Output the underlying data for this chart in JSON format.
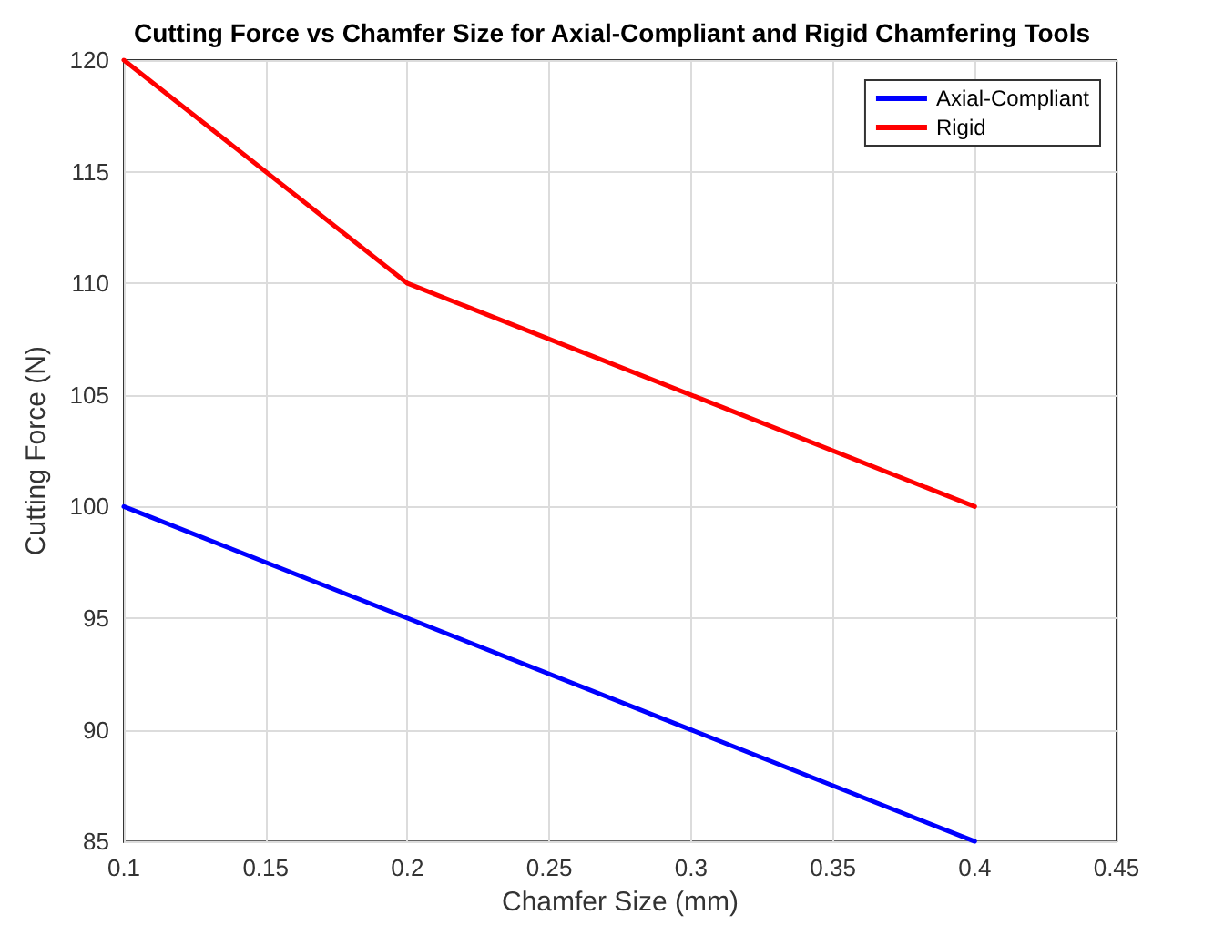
{
  "chart_data": {
    "type": "line",
    "title": "Cutting Force vs Chamfer Size for Axial-Compliant and Rigid Chamfering Tools",
    "xlabel": "Chamfer Size (mm)",
    "ylabel": "Cutting Force (N)",
    "x": [
      0.1,
      0.2,
      0.3,
      0.4
    ],
    "series": [
      {
        "name": "Axial-Compliant",
        "color": "#0000ff",
        "values": [
          100,
          95,
          90,
          85
        ]
      },
      {
        "name": "Rigid",
        "color": "#ff0000",
        "values": [
          120,
          110,
          105,
          100
        ]
      }
    ],
    "xlim": [
      0.1,
      0.45
    ],
    "xticks": [
      0.1,
      0.15,
      0.2,
      0.25,
      0.3,
      0.35,
      0.4,
      0.45
    ],
    "ylim": [
      85,
      120
    ],
    "yticks": [
      85,
      90,
      95,
      100,
      105,
      110,
      115,
      120
    ],
    "grid": true,
    "legend": "top right",
    "marker": "none",
    "line_style": "solid"
  }
}
